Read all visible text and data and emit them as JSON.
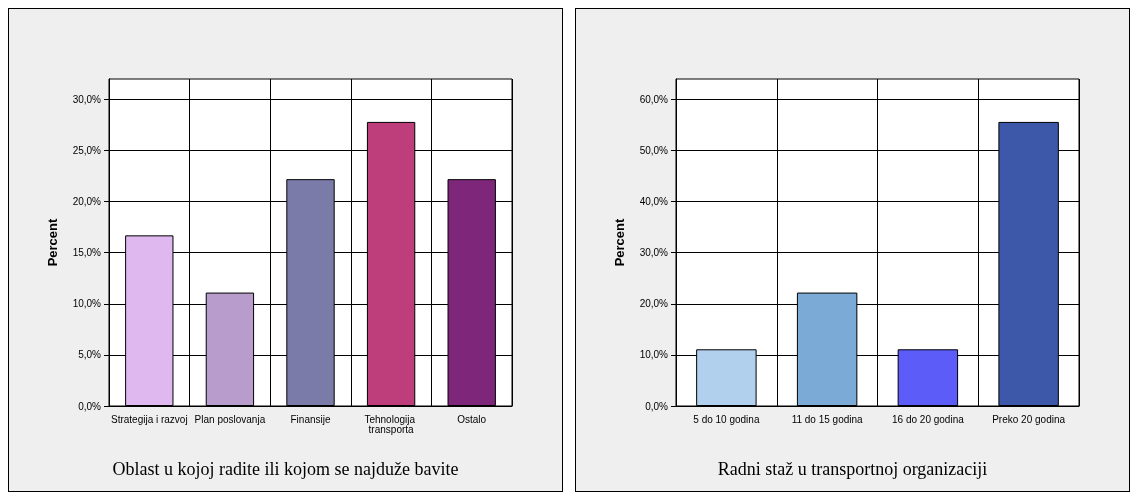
{
  "chart_data": [
    {
      "type": "bar",
      "title": "Oblast u kojoj radite ili kojom se najduže bavite",
      "ylabel": "Percent",
      "categories": [
        "Strategija i razvoj",
        "Plan poslovanja",
        "Finansije",
        "Tehnologija transporta",
        "Ostalo"
      ],
      "values": [
        16.7,
        11.1,
        22.2,
        27.8,
        22.2
      ],
      "colors": [
        "#e0b8f0",
        "#b89ccb",
        "#7b7ba9",
        "#bd3e7b",
        "#7e277a"
      ],
      "ylim": [
        0,
        32
      ],
      "yticks": [
        {
          "value": 0,
          "label": "0,0%"
        },
        {
          "value": 5,
          "label": "5,0%"
        },
        {
          "value": 10,
          "label": "10,0%"
        },
        {
          "value": 15,
          "label": "15,0%"
        },
        {
          "value": 20,
          "label": "20,0%"
        },
        {
          "value": 25,
          "label": "25,0%"
        },
        {
          "value": 30,
          "label": "30,0%"
        }
      ],
      "grid": true
    },
    {
      "type": "bar",
      "title": "Radni staž u transportnoj organizaciji",
      "ylabel": "Percent",
      "categories": [
        "5 do 10 godina",
        "11 do 15 godina",
        "16 do 20 godina",
        "Preko 20 godina"
      ],
      "values": [
        11.1,
        22.2,
        11.1,
        55.6
      ],
      "colors": [
        "#b0d0ee",
        "#7baad6",
        "#5c5cf8",
        "#3d58a8"
      ],
      "ylim": [
        0,
        64
      ],
      "yticks": [
        {
          "value": 0,
          "label": "0,0%"
        },
        {
          "value": 10,
          "label": "10,0%"
        },
        {
          "value": 20,
          "label": "20,0%"
        },
        {
          "value": 30,
          "label": "30,0%"
        },
        {
          "value": 40,
          "label": "40,0%"
        },
        {
          "value": 50,
          "label": "50,0%"
        },
        {
          "value": 60,
          "label": "60,0%"
        }
      ],
      "grid": true
    }
  ]
}
